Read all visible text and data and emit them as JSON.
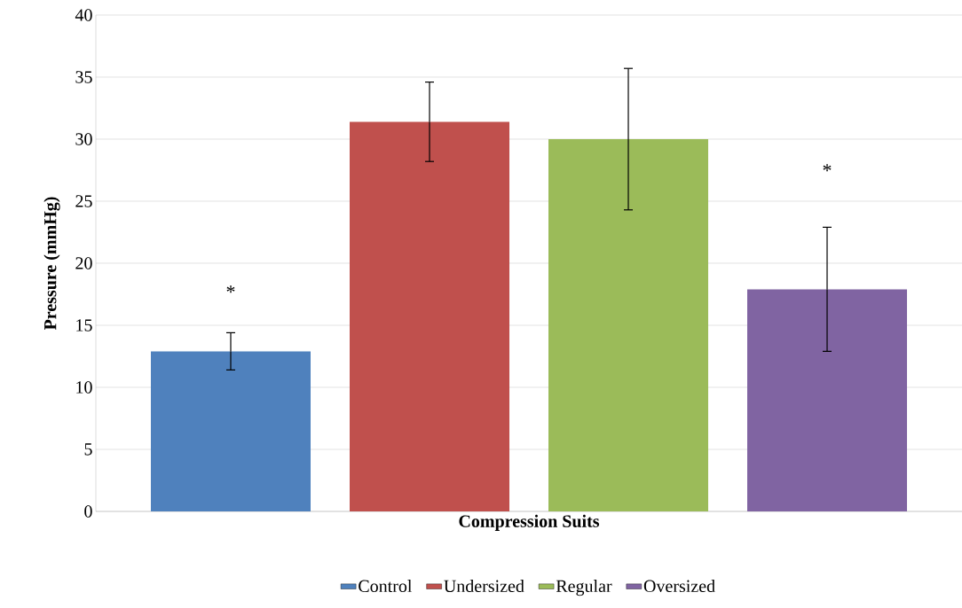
{
  "chart_data": {
    "type": "bar",
    "xlabel": "Compression Suits",
    "ylabel": "Pressure (mmHg)",
    "categories": [
      null
    ],
    "series": [
      {
        "name": "Control",
        "color": "#4f81bd",
        "values": [
          12.9
        ],
        "errors": [
          1.5
        ]
      },
      {
        "name": "Undersized",
        "color": "#c0504d",
        "values": [
          31.4
        ],
        "errors": [
          3.2
        ]
      },
      {
        "name": "Regular",
        "color": "#9bbb59",
        "values": [
          30.0
        ],
        "errors": [
          5.7
        ]
      },
      {
        "name": "Oversized",
        "color": "#8064a2",
        "values": [
          17.9
        ],
        "errors": [
          5.0
        ]
      }
    ],
    "annotations": [
      "*",
      "*"
    ],
    "ylim": [
      0,
      40
    ],
    "yticks": [
      0,
      5,
      10,
      15,
      20,
      25,
      30,
      35,
      40
    ],
    "grid": "y",
    "legend": "bottom"
  }
}
